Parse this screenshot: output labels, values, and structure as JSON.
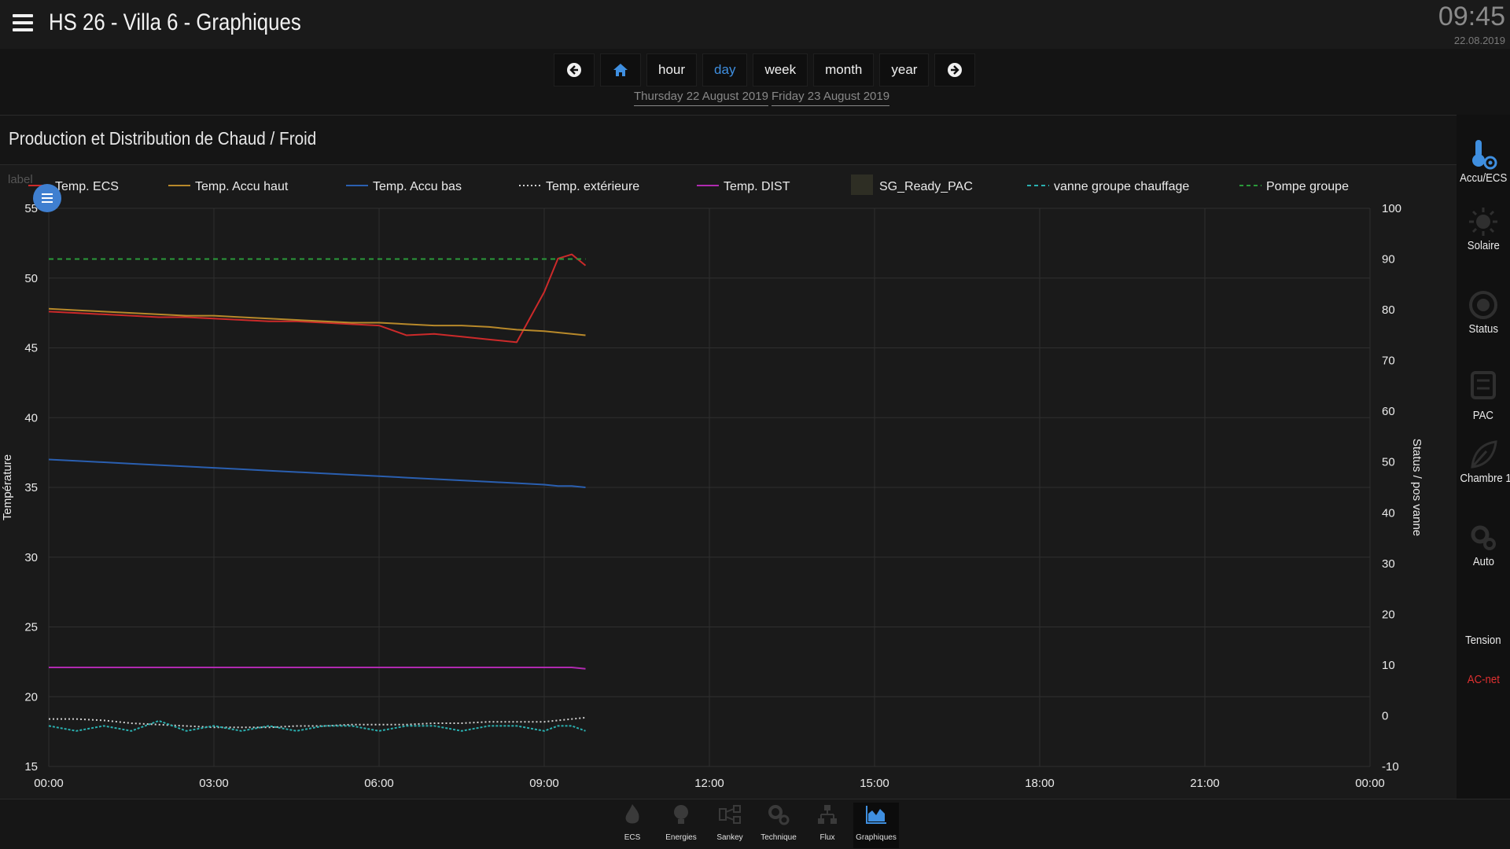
{
  "header": {
    "title": "HS 26 - Villa 6 - Graphiques",
    "time": "09:45",
    "date": "22.08.2019"
  },
  "range_nav": {
    "prev_icon": "arrow-left-icon",
    "home_icon": "home-icon",
    "buttons": [
      "hour",
      "day",
      "week",
      "month",
      "year"
    ],
    "active": "day",
    "next_icon": "arrow-right-icon",
    "dates": [
      "Thursday 22 August 2019",
      "Friday 23 August 2019"
    ]
  },
  "panel": {
    "title": "Production et Distribution de Chaud / Froid"
  },
  "sidebar": {
    "items": [
      {
        "label": "Accu/ECS",
        "icon": "thermometer-gear-icon"
      },
      {
        "label": "Solaire",
        "icon": "sun-icon"
      },
      {
        "label": "Status",
        "icon": "gauge-icon"
      },
      {
        "label": "PAC",
        "icon": "heat-pump-icon"
      },
      {
        "label": "Chambre 1",
        "icon": "leaf-icon"
      },
      {
        "label": "Auto",
        "icon": "gears-icon"
      },
      {
        "label": "Tension",
        "icon": "plug-icon"
      },
      {
        "label": "AC-net",
        "icon": "network-icon"
      }
    ],
    "accent_label_color": "#e03030"
  },
  "footer": {
    "items": [
      {
        "label": "ECS",
        "icon": "flame-icon"
      },
      {
        "label": "Energies",
        "icon": "bulb-icon"
      },
      {
        "label": "Sankey",
        "icon": "sankey-icon"
      },
      {
        "label": "Technique",
        "icon": "cogs-icon"
      },
      {
        "label": "Flux",
        "icon": "flow-icon"
      },
      {
        "label": "Graphiques",
        "icon": "area-chart-icon"
      }
    ],
    "active": "Graphiques"
  },
  "chart_data": {
    "type": "line",
    "title": "",
    "legend_placement": "top",
    "legend_toggle_label": "label",
    "grid": true,
    "x_ticks": [
      "00:00",
      "03:00",
      "06:00",
      "09:00",
      "12:00",
      "15:00",
      "18:00",
      "21:00",
      "00:00"
    ],
    "xlim_hours": [
      0,
      24
    ],
    "y_left": {
      "label": "Température",
      "ticks": [
        55,
        50,
        45,
        40,
        35,
        30,
        25,
        20,
        15
      ],
      "lim": [
        15,
        55
      ]
    },
    "y_right": {
      "label": "Status / pos vanne",
      "ticks": [
        100,
        90,
        80,
        70,
        60,
        50,
        40,
        30,
        20,
        10,
        0,
        -10
      ],
      "lim": [
        -10,
        100
      ]
    },
    "x_hours": [
      0,
      0.5,
      1,
      1.5,
      2,
      2.5,
      3,
      3.5,
      4,
      4.5,
      5,
      5.5,
      6,
      6.5,
      7,
      7.5,
      8,
      8.5,
      9,
      9.25,
      9.5,
      9.75
    ],
    "series": [
      {
        "name": "Temp. ECS",
        "color": "#cc2a2a",
        "style": "solid",
        "axis": "left",
        "values": [
          47.6,
          47.5,
          47.4,
          47.3,
          47.2,
          47.2,
          47.1,
          47.0,
          46.9,
          46.9,
          46.8,
          46.7,
          46.6,
          45.9,
          46.0,
          45.8,
          45.6,
          45.4,
          49.0,
          51.4,
          51.7,
          50.9
        ]
      },
      {
        "name": "Temp. Accu haut",
        "color": "#b8892a",
        "style": "solid",
        "axis": "left",
        "values": [
          47.8,
          47.7,
          47.6,
          47.5,
          47.4,
          47.3,
          47.3,
          47.2,
          47.1,
          47.0,
          46.9,
          46.8,
          46.8,
          46.7,
          46.6,
          46.6,
          46.5,
          46.3,
          46.2,
          46.1,
          46.0,
          45.9
        ]
      },
      {
        "name": "Temp. Accu bas",
        "color": "#2a5fb0",
        "style": "solid",
        "axis": "left",
        "values": [
          37.0,
          36.9,
          36.8,
          36.7,
          36.6,
          36.5,
          36.4,
          36.3,
          36.2,
          36.1,
          36.0,
          35.9,
          35.8,
          35.7,
          35.6,
          35.5,
          35.4,
          35.3,
          35.2,
          35.1,
          35.1,
          35.0
        ]
      },
      {
        "name": "Temp. extérieure",
        "color": "#cfcfcf",
        "style": "dotted",
        "axis": "left",
        "values": [
          18.4,
          18.4,
          18.3,
          18.1,
          18.0,
          17.9,
          17.8,
          17.8,
          17.8,
          17.9,
          17.9,
          18.0,
          18.0,
          18.0,
          18.1,
          18.1,
          18.2,
          18.2,
          18.2,
          18.3,
          18.4,
          18.5
        ]
      },
      {
        "name": "Temp. DIST",
        "color": "#b02ab0",
        "style": "solid",
        "axis": "left",
        "values": [
          22.1,
          22.1,
          22.1,
          22.1,
          22.1,
          22.1,
          22.1,
          22.1,
          22.1,
          22.1,
          22.1,
          22.1,
          22.1,
          22.1,
          22.1,
          22.1,
          22.1,
          22.1,
          22.1,
          22.1,
          22.1,
          22.0
        ]
      },
      {
        "name": "SG_Ready_PAC",
        "color": "#2e2e24",
        "style": "area",
        "axis": "right",
        "values": []
      },
      {
        "name": "vanne groupe chauffage",
        "color": "#2ab0b0",
        "style": "dashed",
        "axis": "right",
        "values": [
          -2,
          -3,
          -2,
          -3,
          -1,
          -3,
          -2,
          -3,
          -2,
          -3,
          -2,
          -2,
          -3,
          -2,
          -2,
          -3,
          -2,
          -2,
          -3,
          -2,
          -2,
          -3
        ]
      },
      {
        "name": "Pompe groupe",
        "color": "#2a9a3a",
        "style": "dashed",
        "axis": "right",
        "values": [
          90,
          90,
          90,
          90,
          90,
          90,
          90,
          90,
          90,
          90,
          90,
          90,
          90,
          90,
          90,
          90,
          90,
          90,
          90,
          90,
          90,
          90
        ]
      }
    ]
  }
}
